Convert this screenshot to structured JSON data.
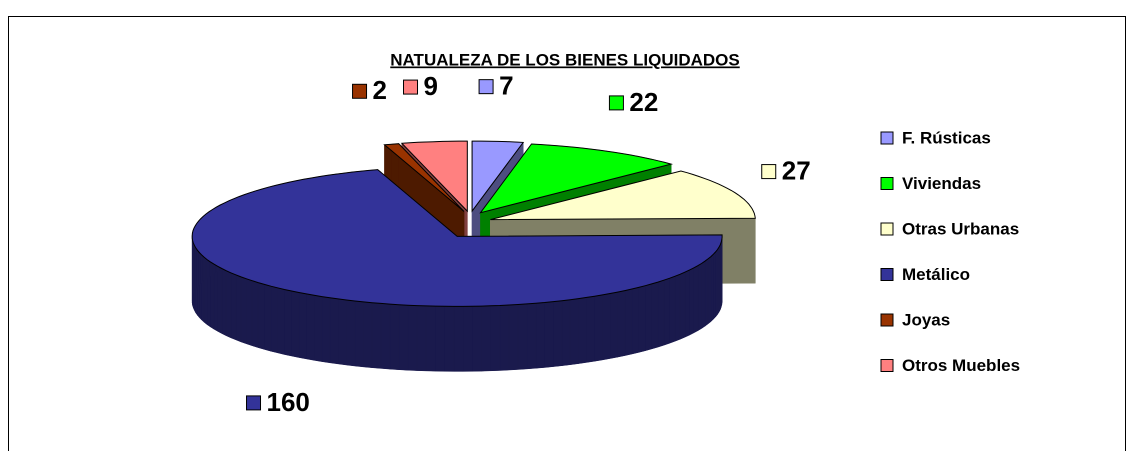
{
  "chart_data": {
    "type": "pie",
    "title": "NATUALEZA DE LOS BIENES LIQUIDADOS",
    "categories": [
      "F. Rústicas",
      "Viviendas",
      "Otras Urbanas",
      "Metálico",
      "Joyas",
      "Otros Muebles"
    ],
    "values": [
      7,
      22,
      27,
      160,
      2,
      9
    ],
    "colors": [
      "#9999ff",
      "#00ff00",
      "#ffffcc",
      "#333399",
      "#993300",
      "#ff8080"
    ],
    "legend": "right"
  }
}
